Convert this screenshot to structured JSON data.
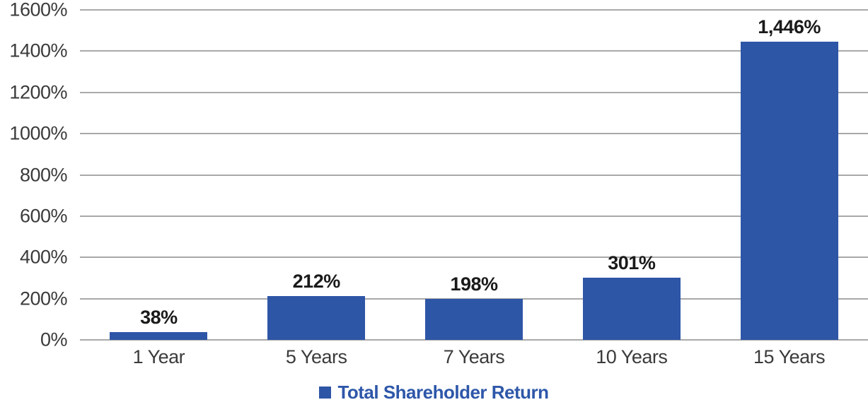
{
  "chart_data": {
    "type": "bar",
    "title": "",
    "categories": [
      "1 Year",
      "5 Years",
      "7 Years",
      "10 Years",
      "15 Years"
    ],
    "values": [
      38,
      212,
      198,
      301,
      1446
    ],
    "data_labels": [
      "38%",
      "212%",
      "198%",
      "301%",
      "1,446%"
    ],
    "ylim": [
      0,
      1600
    ],
    "ytick_step": 200,
    "ytick_labels": [
      "0%",
      "200%",
      "400%",
      "600%",
      "800%",
      "1000%",
      "1200%",
      "1400%",
      "1600%"
    ],
    "xlabel": "",
    "ylabel": "",
    "grid": true,
    "legend_position": "bottom",
    "legend": [
      "Total Shareholder Return"
    ],
    "colors": {
      "bar": "#2E56A6",
      "legend_text": "#2E57A9",
      "legend_swatch": "#2E56A6",
      "axis_text": "#3B3B3B",
      "data_label_text": "#1A1A1A",
      "gridline": "#A9A9A9",
      "background": "#FFFFFF"
    }
  }
}
